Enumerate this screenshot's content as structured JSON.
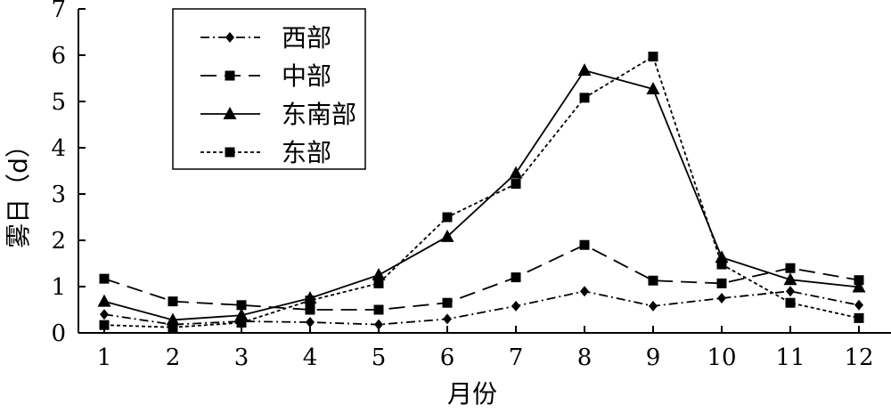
{
  "chart_data": {
    "type": "line",
    "title": "",
    "xlabel": "月份",
    "ylabel": "雾日（d）",
    "x": [
      1,
      2,
      3,
      4,
      5,
      6,
      7,
      8,
      9,
      10,
      11,
      12
    ],
    "x_tick_labels": [
      "1",
      "2",
      "3",
      "4",
      "5",
      "6",
      "7",
      "8",
      "9",
      "10",
      "11",
      "12"
    ],
    "y_tick_labels": [
      "0",
      "1",
      "2",
      "3",
      "4",
      "5",
      "6",
      "7"
    ],
    "ylim": [
      0,
      7
    ],
    "grid": false,
    "legend_position": "top-left",
    "series": [
      {
        "name": "西部",
        "line_style": "dash-dot",
        "marker": "diamond",
        "color": "#000000",
        "values": [
          0.4,
          0.18,
          0.25,
          0.23,
          0.18,
          0.3,
          0.58,
          0.9,
          0.58,
          0.75,
          0.9,
          0.6
        ]
      },
      {
        "name": "中部",
        "line_style": "long-dash",
        "marker": "square",
        "color": "#000000",
        "values": [
          1.17,
          0.68,
          0.6,
          0.5,
          0.5,
          0.65,
          1.2,
          1.9,
          1.13,
          1.07,
          1.4,
          1.14
        ]
      },
      {
        "name": "东南部",
        "line_style": "solid",
        "marker": "triangle",
        "color": "#000000",
        "values": [
          0.68,
          0.28,
          0.38,
          0.75,
          1.25,
          2.08,
          3.45,
          5.67,
          5.27,
          1.63,
          1.15,
          0.99
        ]
      },
      {
        "name": "东部",
        "line_style": "dotted",
        "marker": "square",
        "color": "#000000",
        "values": [
          0.17,
          0.12,
          0.22,
          0.7,
          1.07,
          2.5,
          3.22,
          5.08,
          5.97,
          1.48,
          0.65,
          0.32
        ]
      }
    ]
  }
}
